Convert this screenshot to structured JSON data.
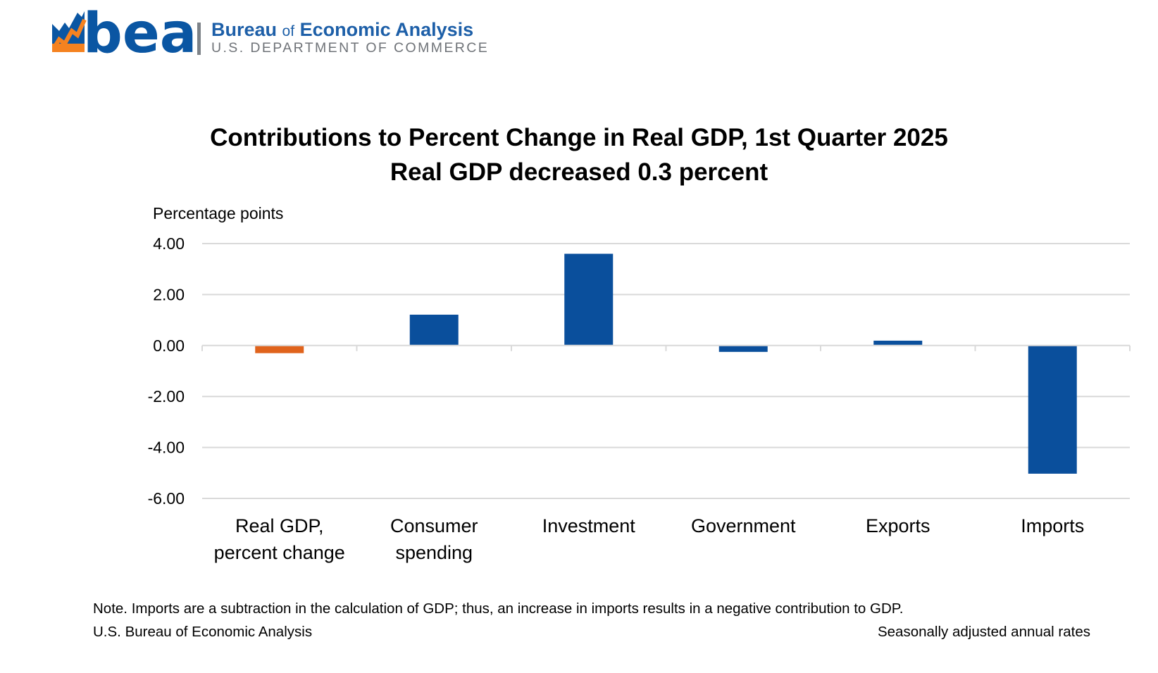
{
  "header": {
    "logo_text": "bea",
    "org_name_1": "Bureau",
    "org_name_of": "of",
    "org_name_2": "Economic Analysis",
    "org_sub": "U.S. DEPARTMENT OF COMMERCE"
  },
  "chart_data": {
    "type": "bar",
    "title": "Contributions to Percent Change in Real GDP, 1st Quarter 2025",
    "subtitle": "Real GDP decreased 0.3 percent",
    "ylabel": "Percentage points",
    "xlabel": "",
    "ylim": [
      -6,
      4
    ],
    "yticks": [
      "4.00",
      "2.00",
      "0.00",
      "-2.00",
      "-4.00",
      "-6.00"
    ],
    "ytick_values": [
      4,
      2,
      0,
      -2,
      -4,
      -6
    ],
    "grid": true,
    "categories": [
      [
        "Real GDP,",
        "percent change"
      ],
      [
        "Consumer",
        "spending"
      ],
      [
        "Investment"
      ],
      [
        "Government"
      ],
      [
        "Exports"
      ],
      [
        "Imports"
      ]
    ],
    "values": [
      -0.3,
      1.21,
      3.6,
      -0.25,
      0.19,
      -5.03
    ],
    "colors": [
      "#e0631c",
      "#0a4f9c",
      "#0a4f9c",
      "#0a4f9c",
      "#0a4f9c",
      "#0a4f9c"
    ]
  },
  "footer": {
    "note": "Note. Imports are a subtraction in the calculation of GDP; thus, an increase in imports results in a negative contribution to GDP.",
    "source": "U.S. Bureau of Economic Analysis",
    "rates": "Seasonally adjusted annual rates"
  }
}
